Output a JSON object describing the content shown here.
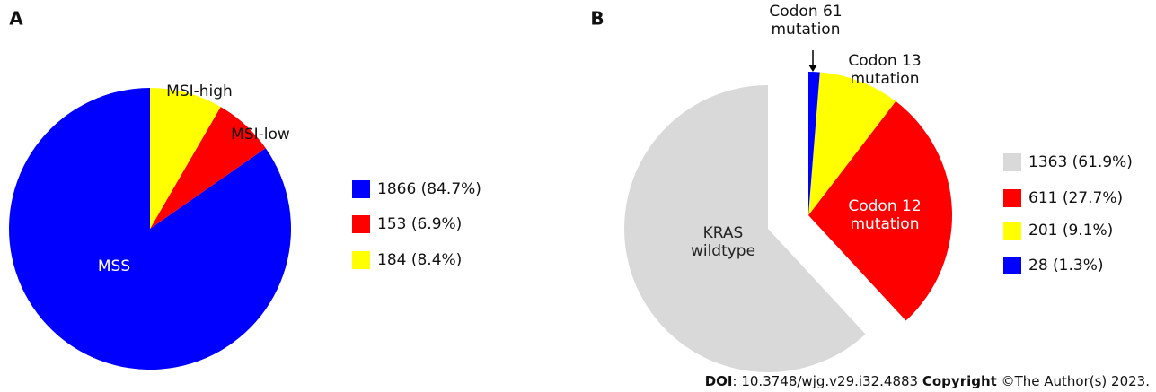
{
  "chart_data": [
    {
      "type": "pie",
      "panel": "A",
      "categories": [
        [
          "MSS"
        ],
        [
          "MSI-low"
        ],
        [
          "MSI-high"
        ]
      ],
      "values": [
        1866,
        153,
        184
      ],
      "value_labels": [
        "1866 (84.7%)",
        "153 (6.9%)",
        "184 (8.4%)"
      ],
      "colors": [
        "#0000ff",
        "#ff0000",
        "#ffff00"
      ],
      "label_colors": [
        "#ffffff",
        "#111111",
        "#111111"
      ],
      "explode": [
        false,
        false,
        false
      ]
    },
    {
      "type": "pie",
      "panel": "B",
      "categories": [
        [
          "KRAS",
          "wildtype"
        ],
        [
          "Codon 12",
          "mutation"
        ],
        [
          "Codon 13",
          "mutation"
        ],
        [
          "Codon 61",
          "mutation"
        ]
      ],
      "values": [
        1363,
        611,
        201,
        28
      ],
      "value_labels": [
        "1363 (61.9%)",
        "611 (27.7%)",
        "201 (9.1%)",
        "28 (1.3%)"
      ],
      "colors": [
        "#d9d9d9",
        "#ff0000",
        "#ffff00",
        "#0000ff"
      ],
      "label_colors": [
        "#222222",
        "#ffffff",
        "#111111",
        "#111111"
      ],
      "explode": [
        true,
        false,
        false,
        false
      ]
    }
  ],
  "footer": {
    "doi_label": "DOI",
    "doi": ": 10.3748/wjg.v29.i32.4883",
    "copyright_label": "Copyright",
    "copyright": " ©The Author(s) 2023."
  }
}
